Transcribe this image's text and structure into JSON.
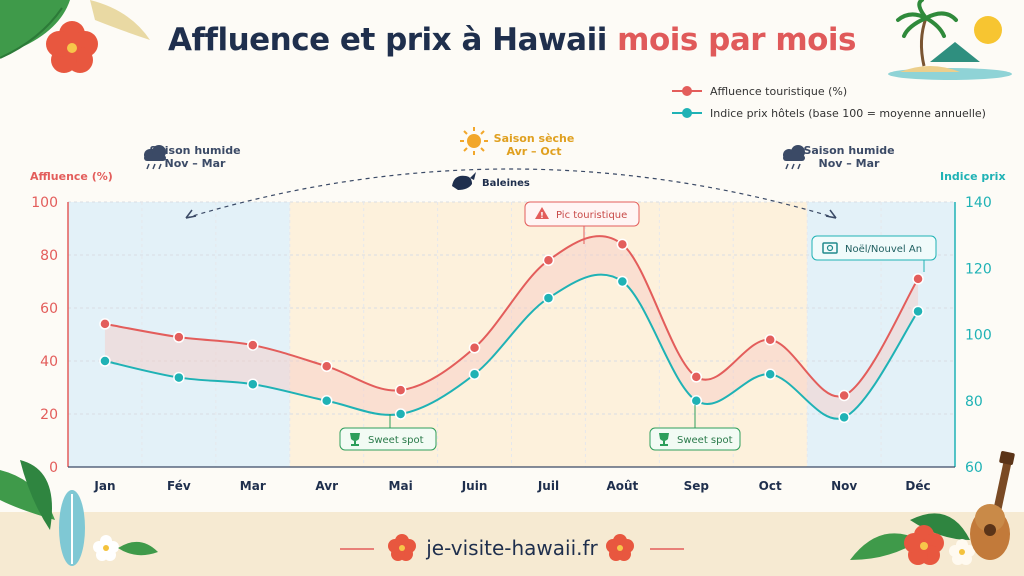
{
  "title": {
    "part1": "Affluence et prix à Hawaii",
    "part2": "mois par mois"
  },
  "legend": [
    {
      "label": "Affluence touristique (%)",
      "color": "#e35d5b"
    },
    {
      "label": "Indice prix hôtels (base 100 = moyenne annuelle)",
      "color": "#1fb2b5"
    }
  ],
  "seasons": {
    "wet_left": {
      "label": "Saison humide",
      "period": "Nov – Mar",
      "icon": "rain-cloud-icon"
    },
    "dry": {
      "label": "Saison sèche",
      "period": "Avr – Oct",
      "icon": "sun-icon"
    },
    "wet_right": {
      "label": "Saison humide",
      "period": "Nov – Mar",
      "icon": "rain-cloud-icon"
    }
  },
  "whales_label": "Baleines",
  "axis_titles": {
    "left": "Affluence (%)",
    "right": "Indice prix"
  },
  "annotations": {
    "pic": "Pic touristique",
    "sweet1": "Sweet spot",
    "sweet2": "Sweet spot",
    "noel": "Noël/Nouvel An"
  },
  "footer": {
    "url": "je-visite-hawaii.fr"
  },
  "colors": {
    "affluence": "#e35d5b",
    "prix": "#1fb2b5",
    "wet_band": "#e3f1f8",
    "dry_band": "#fdf1dc",
    "title_dark": "#1f2f4d",
    "title_accent": "#e05a5a"
  },
  "chart_data": {
    "type": "line",
    "categories": [
      "Jan",
      "Fév",
      "Mar",
      "Avr",
      "Mai",
      "Juin",
      "Juil",
      "Août",
      "Sep",
      "Oct",
      "Nov",
      "Déc"
    ],
    "series": [
      {
        "name": "Affluence touristique (%)",
        "axis": "left",
        "values": [
          54,
          49,
          46,
          38,
          29,
          45,
          78,
          84,
          34,
          48,
          27,
          71
        ]
      },
      {
        "name": "Indice prix hôtels (base 100 = moyenne annuelle)",
        "axis": "right",
        "values": [
          92,
          87,
          85,
          80,
          76,
          88,
          111,
          116,
          80,
          88,
          75,
          107
        ]
      }
    ],
    "ylabel": "Affluence (%)",
    "y2label": "Indice prix",
    "ylim": [
      0,
      100
    ],
    "y2lim": [
      60,
      140
    ],
    "yticks": [
      0,
      20,
      40,
      60,
      80,
      100
    ],
    "y2ticks": [
      60,
      80,
      100,
      120,
      140
    ],
    "grid": true,
    "legend_position": "top-right"
  }
}
